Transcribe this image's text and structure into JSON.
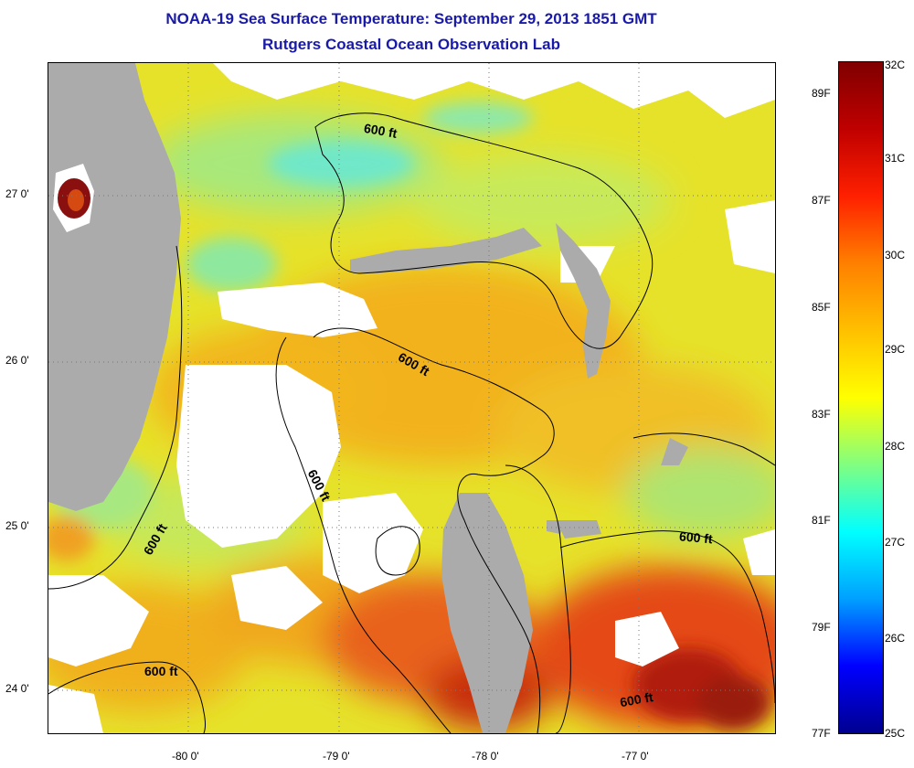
{
  "title": "NOAA-19 Sea Surface Temperature:  September 29, 2013 1851 GMT",
  "subtitle": "Rutgers Coastal Ocean Observation Lab",
  "map": {
    "latitude_labels": [
      "27 0'",
      "26 0'",
      "25 0'",
      "24 0'"
    ],
    "longitude_labels": [
      "-80 0'",
      "-79 0'",
      "-78 0'",
      "-77 0'"
    ],
    "contour_label": "600 ft",
    "colors": {
      "land": "#ababab",
      "no_data": "#ffffff",
      "warm_red": "#d42a10",
      "orange": "#f2a21c",
      "yellow": "#e8e41e",
      "yellow_green": "#c9e84a",
      "cyan": "#6fe8c9",
      "dark_blue": "#142ca0",
      "dark_red": "#6e0c0c"
    }
  },
  "colorbar": {
    "celsius_labels": [
      "32C",
      "31C",
      "30C",
      "29C",
      "28C",
      "27C",
      "26C",
      "25C"
    ],
    "fahrenheit_labels": [
      "89F",
      "87F",
      "85F",
      "83F",
      "81F",
      "79F",
      "77F"
    ],
    "range_c": [
      25,
      32
    ],
    "stops": [
      "#00008f",
      "#0000ff",
      "#00a0ff",
      "#00ffff",
      "#80ff80",
      "#ffff00",
      "#ffc000",
      "#ff8000",
      "#ff2000",
      "#c00000",
      "#800000"
    ]
  }
}
